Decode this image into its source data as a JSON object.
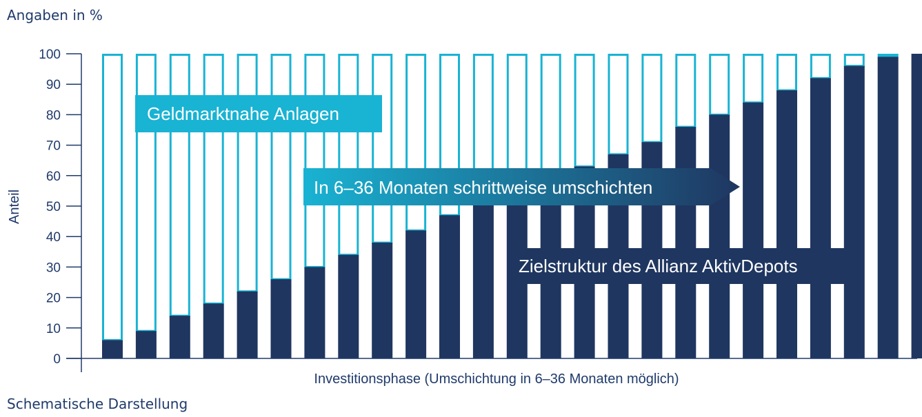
{
  "header_note": "Angaben in %",
  "footer_note": "Schematische Darstellung",
  "colors": {
    "axis": "#1f3a6b",
    "target_bar": "#1f3660",
    "money_market_outline": "#19b3d3",
    "label_cyan_bg": "#19b3d3",
    "arrow_gradient_start": "#19b3d3",
    "arrow_gradient_end": "#1f3660"
  },
  "chart_data": {
    "type": "bar",
    "stacked": true,
    "xlabel": "Investitionsphase (Umschichtung in 6–36 Monaten möglich)",
    "ylabel": "Anteil",
    "ylim": [
      0,
      100
    ],
    "yticks": [
      0,
      10,
      20,
      30,
      40,
      50,
      60,
      70,
      80,
      90,
      100
    ],
    "grid": false,
    "categories": [
      "",
      "",
      "",
      "",
      "",
      "",
      "",
      "",
      "",
      "",
      "",
      "",
      "",
      "",
      "",
      "",
      "",
      "",
      "",
      "",
      "",
      "",
      "",
      "",
      ""
    ],
    "series": [
      {
        "name": "Zielstruktur des Allianz AktivDepots",
        "values": [
          6,
          9,
          14,
          18,
          22,
          26,
          30,
          34,
          38,
          42,
          47,
          51,
          55,
          59,
          63,
          67,
          71,
          76,
          80,
          84,
          88,
          92,
          96,
          99,
          100
        ]
      },
      {
        "name": "Geldmarktnahe Anlagen",
        "values": [
          94,
          91,
          86,
          82,
          78,
          74,
          70,
          66,
          62,
          58,
          53,
          49,
          45,
          41,
          37,
          33,
          29,
          24,
          20,
          16,
          12,
          8,
          4,
          1,
          0
        ]
      }
    ],
    "annotations": {
      "money_market_label": "Geldmarktnahe Anlagen",
      "shift_arrow_label": "In 6–36 Monaten schrittweise umschichten",
      "target_label": "Zielstruktur des Allianz AktivDepots"
    }
  }
}
